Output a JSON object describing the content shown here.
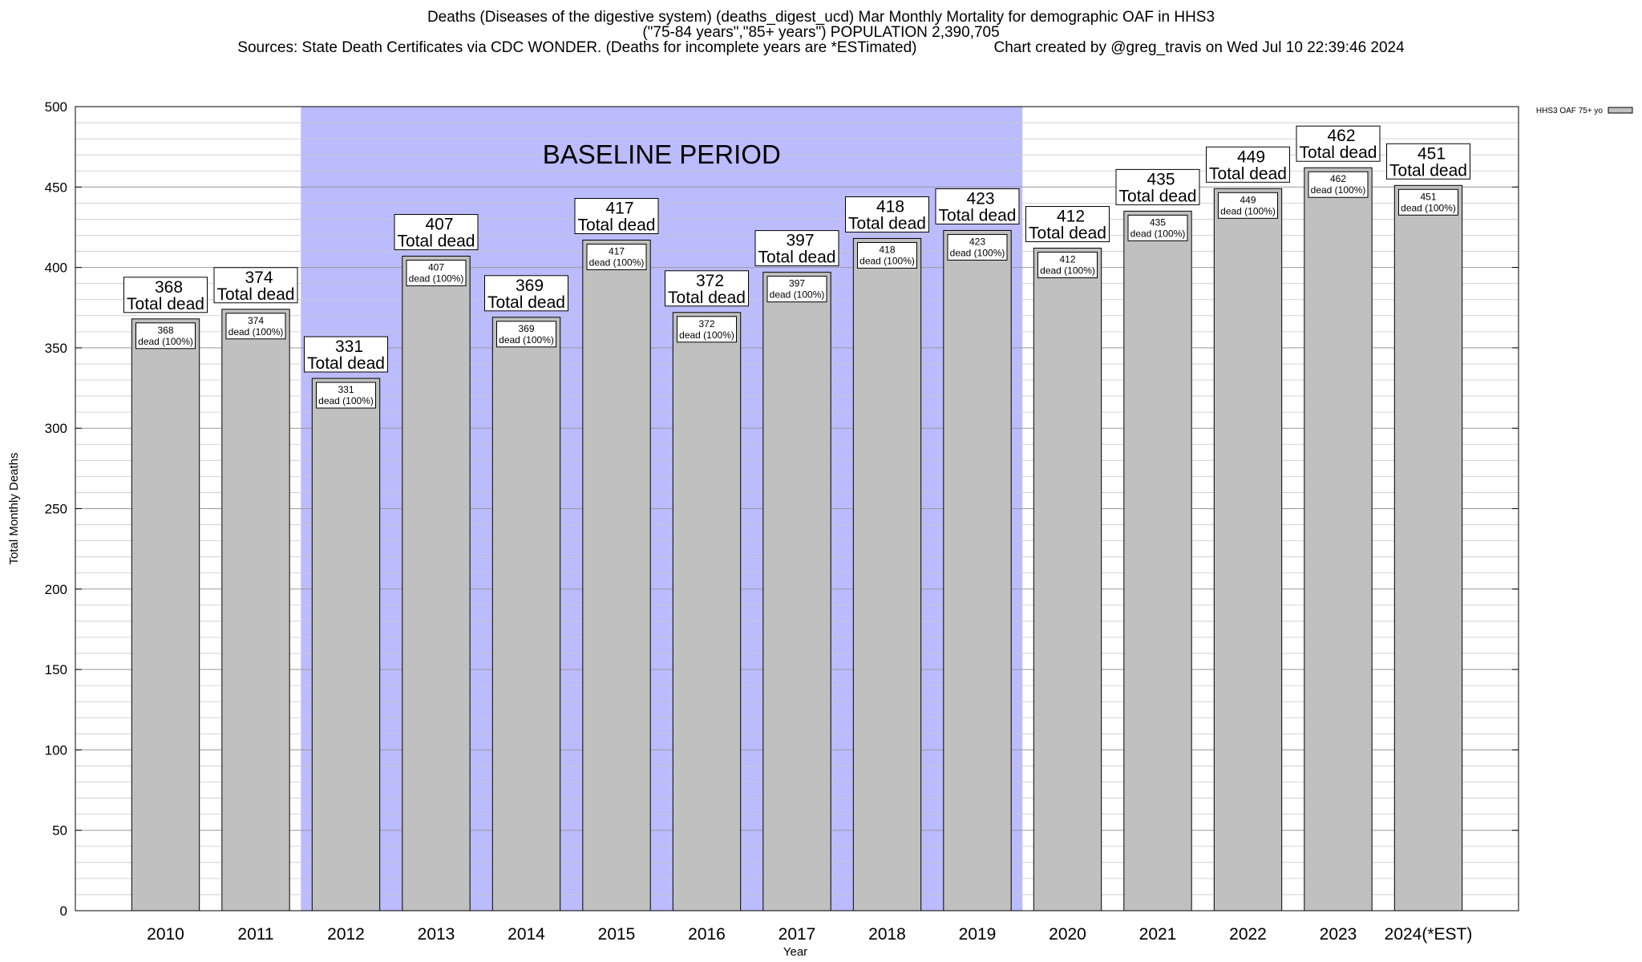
{
  "header": {
    "title_line1": "Deaths (Diseases of the digestive system) (deaths_digest_ucd) Mar Monthly Mortality for demographic OAF in HHS3",
    "title_line2": "(\"75-84 years\",\"85+ years\") POPULATION 2,390,705",
    "sources": "Sources: State Death Certificates via CDC WONDER. (Deaths for incomplete years are *ESTimated)",
    "credit": "Chart created by @greg_travis on Wed Jul 10 22:39:46 2024"
  },
  "chart_data": {
    "type": "bar",
    "title": "Deaths (Diseases of the digestive system) (deaths_digest_ucd) Mar Monthly Mortality for demographic OAF in HHS3",
    "xlabel": "Year",
    "ylabel": "Total Monthly Deaths",
    "ylim": [
      0,
      500
    ],
    "yticks": [
      0,
      50,
      100,
      150,
      200,
      250,
      300,
      350,
      400,
      450,
      500
    ],
    "grid": true,
    "legend_position": "top-right",
    "categories": [
      "2010",
      "2011",
      "2012",
      "2013",
      "2014",
      "2015",
      "2016",
      "2017",
      "2018",
      "2019",
      "2020",
      "2021",
      "2022",
      "2023",
      "2024(*EST)"
    ],
    "series": [
      {
        "name": "HHS3 OAF 75+ yo",
        "color": "#c0c0c0",
        "values": [
          368,
          374,
          331,
          407,
          369,
          417,
          372,
          397,
          418,
          423,
          412,
          435,
          449,
          462,
          451
        ]
      }
    ],
    "total_label": "Total dead",
    "inner_label": "dead (100%)",
    "baseline": {
      "label": "BASELINE PERIOD",
      "from": "2012",
      "to": "2019",
      "color": "#bbbbff"
    }
  }
}
